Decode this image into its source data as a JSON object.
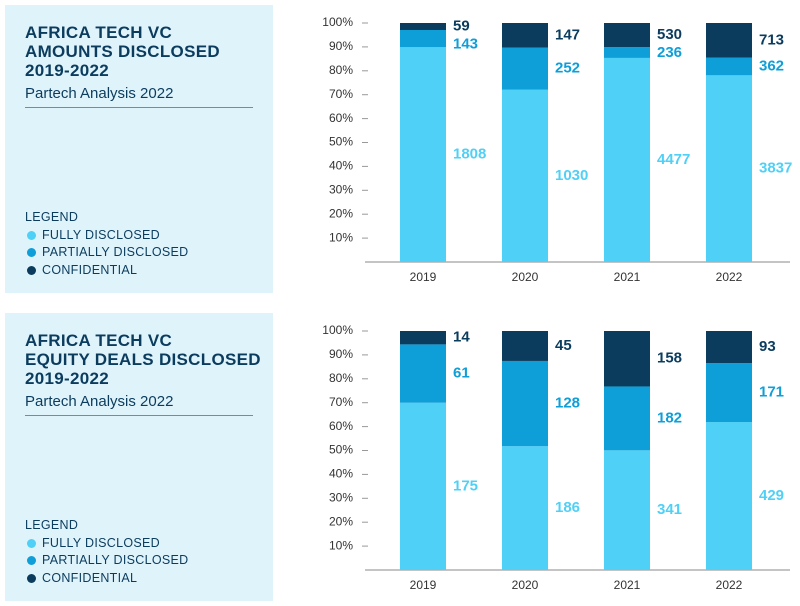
{
  "chart_data": [
    {
      "type": "bar",
      "stacking": "percent",
      "title": "AFRICA TECH VC\nAMOUNTS DISCLOSED\n2019-2022",
      "subtitle": "Partech Analysis 2022",
      "legend_title": "LEGEND",
      "categories": [
        "2019",
        "2020",
        "2021",
        "2022"
      ],
      "series": [
        {
          "name": "FULLY DISCLOSED",
          "color": "#4fd0f6",
          "values": [
            1808,
            1030,
            4477,
            3837
          ]
        },
        {
          "name": "PARTIALLY DISCLOSED",
          "color": "#0e9ed8",
          "values": [
            143,
            252,
            236,
            362
          ]
        },
        {
          "name": "CONFIDENTIAL",
          "color": "#0b3c5e",
          "values": [
            59,
            147,
            530,
            713
          ]
        }
      ],
      "ylim": [
        0,
        100
      ],
      "yticks": [
        {
          "value": 10,
          "label": "10%"
        },
        {
          "value": 20,
          "label": "20%"
        },
        {
          "value": 30,
          "label": "30%"
        },
        {
          "value": 40,
          "label": "40%"
        },
        {
          "value": 50,
          "label": "50%"
        },
        {
          "value": 60,
          "label": "60%"
        },
        {
          "value": 70,
          "label": "70%"
        },
        {
          "value": 80,
          "label": "80%"
        },
        {
          "value": 90,
          "label": "90%"
        },
        {
          "value": 100,
          "label": "100%"
        }
      ]
    },
    {
      "type": "bar",
      "stacking": "percent",
      "title": "AFRICA TECH VC\nEQUITY DEALS DISCLOSED\n2019-2022",
      "subtitle": "Partech Analysis 2022",
      "legend_title": "LEGEND",
      "categories": [
        "2019",
        "2020",
        "2021",
        "2022"
      ],
      "series": [
        {
          "name": "FULLY DISCLOSED",
          "color": "#4fd0f6",
          "values": [
            175,
            186,
            341,
            429
          ]
        },
        {
          "name": "PARTIALLY DISCLOSED",
          "color": "#0e9ed8",
          "values": [
            61,
            128,
            182,
            171
          ]
        },
        {
          "name": "CONFIDENTIAL",
          "color": "#0b3c5e",
          "values": [
            14,
            45,
            158,
            93
          ]
        }
      ],
      "ylim": [
        0,
        100
      ],
      "yticks": [
        {
          "value": 10,
          "label": "10%"
        },
        {
          "value": 20,
          "label": "20%"
        },
        {
          "value": 30,
          "label": "30%"
        },
        {
          "value": 40,
          "label": "40%"
        },
        {
          "value": 50,
          "label": "50%"
        },
        {
          "value": 60,
          "label": "60%"
        },
        {
          "value": 70,
          "label": "70%"
        },
        {
          "value": 80,
          "label": "80%"
        },
        {
          "value": 90,
          "label": "90%"
        },
        {
          "value": 100,
          "label": "100%"
        }
      ]
    }
  ]
}
